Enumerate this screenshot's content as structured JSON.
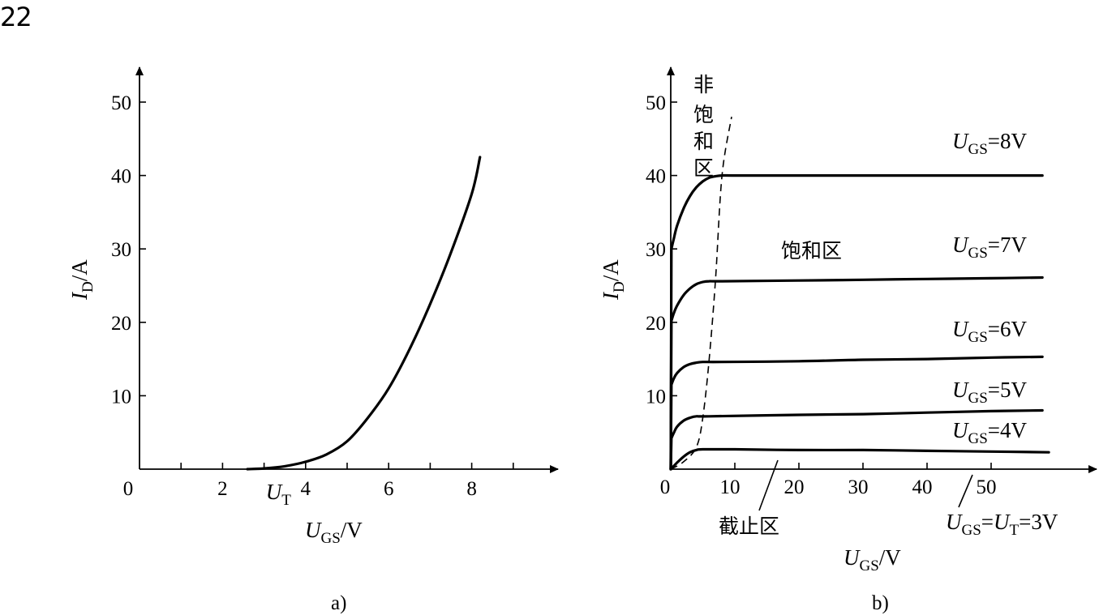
{
  "page_number": "22",
  "chart_data": [
    {
      "type": "line",
      "caption": "a)",
      "xlabel": {
        "base": "U",
        "sub": "GS",
        "unit": "/V"
      },
      "ylabel": {
        "base": "I",
        "sub": "D",
        "unit": "/A"
      },
      "xlim": [
        0,
        10
      ],
      "ylim": [
        0,
        50
      ],
      "x_tick_labels": [
        "0",
        "2",
        "4",
        "6",
        "8"
      ],
      "x_tick_values": [
        0,
        2,
        4,
        6,
        8
      ],
      "x_minor_ticks": [
        1,
        2,
        3,
        4,
        5,
        6,
        7,
        8,
        9
      ],
      "y_ticks": [
        10,
        20,
        30,
        40,
        50
      ],
      "threshold_label": {
        "base": "U",
        "sub": "T",
        "x": 3.1
      },
      "series": [
        {
          "x": [
            2.6,
            3.0,
            3.5,
            4.0,
            4.5,
            5.0,
            5.5,
            6.0,
            6.5,
            7.0,
            7.5,
            8.0,
            8.2
          ],
          "values": [
            0,
            0.1,
            0.4,
            1.0,
            2.0,
            3.8,
            7.0,
            11.0,
            16.3,
            22.5,
            29.5,
            37.5,
            42.5
          ]
        }
      ]
    },
    {
      "type": "line",
      "caption": "b)",
      "xlabel": {
        "base": "U",
        "sub": "GS",
        "unit": "/V"
      },
      "ylabel": {
        "base": "I",
        "sub": "D",
        "unit": "/A"
      },
      "xlim": [
        0,
        65
      ],
      "ylim": [
        0,
        50
      ],
      "x_ticks": [
        10,
        20,
        30,
        40,
        50
      ],
      "x_origin_label": "0",
      "y_ticks": [
        10,
        20,
        30,
        40,
        50
      ],
      "regions": {
        "ohmic": "非饱和区",
        "saturation": "饱和区",
        "cutoff": "截止区"
      },
      "series": [
        {
          "label": {
            "pre": "U",
            "sub": "GS",
            "post": "=8V"
          },
          "x": [
            0,
            0.1,
            0.5,
            1,
            2,
            3,
            4,
            5,
            6,
            7,
            8,
            10,
            20,
            30,
            40,
            50,
            58
          ],
          "values": [
            0,
            30,
            31.5,
            33.2,
            35.5,
            37.2,
            38.4,
            39.2,
            39.7,
            39.9,
            40,
            40,
            40,
            40,
            40,
            40,
            40
          ]
        },
        {
          "label": {
            "pre": "U",
            "sub": "GS",
            "post": "=7V"
          },
          "x": [
            0,
            0.1,
            0.5,
            1,
            2,
            3,
            4,
            5,
            6,
            8,
            20,
            30,
            40,
            50,
            58
          ],
          "values": [
            0,
            20.2,
            21.3,
            22.3,
            23.7,
            24.6,
            25.2,
            25.5,
            25.6,
            25.6,
            25.7,
            25.8,
            25.9,
            26.0,
            26.1
          ]
        },
        {
          "label": {
            "pre": "U",
            "sub": "GS",
            "post": "=6V"
          },
          "x": [
            0,
            0.1,
            0.5,
            1,
            2,
            3,
            4,
            5,
            8,
            20,
            30,
            40,
            50,
            58
          ],
          "values": [
            0,
            11.5,
            12.4,
            13.1,
            13.9,
            14.3,
            14.5,
            14.6,
            14.6,
            14.7,
            14.9,
            15.0,
            15.2,
            15.3
          ]
        },
        {
          "label": {
            "pre": "U",
            "sub": "GS",
            "post": "=5V"
          },
          "x": [
            0,
            0.1,
            0.5,
            1,
            2,
            3,
            4,
            6,
            20,
            30,
            40,
            50,
            58
          ],
          "values": [
            0,
            4.2,
            5.0,
            5.8,
            6.6,
            7.0,
            7.2,
            7.2,
            7.4,
            7.5,
            7.7,
            7.9,
            8.0
          ]
        },
        {
          "label": {
            "pre": "U",
            "sub": "GS",
            "post": "=4V"
          },
          "x": [
            0,
            1,
            2,
            3,
            4,
            5,
            10,
            20,
            30,
            40,
            50,
            59
          ],
          "values": [
            0,
            0.9,
            1.7,
            2.3,
            2.6,
            2.7,
            2.7,
            2.6,
            2.6,
            2.5,
            2.4,
            2.3
          ]
        }
      ],
      "bottom_label": {
        "base1": "U",
        "sub1": "GS",
        "eq1": "=",
        "base2": "U",
        "sub2": "T",
        "eq2": "=3V"
      },
      "boundary_dashed": {
        "x": [
          0,
          2,
          4,
          5,
          6,
          7,
          8,
          9.5
        ],
        "values": [
          0,
          1,
          3,
          7,
          15,
          26,
          40,
          48
        ]
      }
    }
  ]
}
